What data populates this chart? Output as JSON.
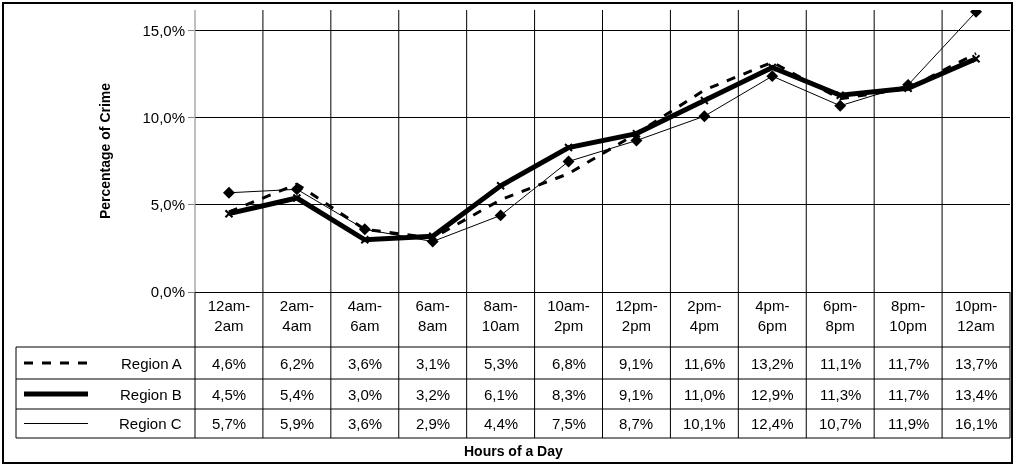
{
  "chart_data": {
    "type": "line",
    "annotations": [
      "Hours of a Day"
    ],
    "ylabel": "Percentage of Crime",
    "categories": [
      "12am-2am",
      "2am-4am",
      "4am-6am",
      "6am-8am",
      "8am-10am",
      "10am-2pm",
      "12pm-2pm",
      "2pm-4pm",
      "4pm-6pm",
      "6pm-8pm",
      "8pm-10pm",
      "10pm-12am"
    ],
    "series": [
      {
        "name": "Region A",
        "color": "#000000",
        "line_style": "dashed",
        "marker": "none",
        "values": [
          4.6,
          6.2,
          3.6,
          3.1,
          5.3,
          6.8,
          9.1,
          11.6,
          13.2,
          11.1,
          11.7,
          13.7
        ],
        "value_labels": [
          "4,6%",
          "6,2%",
          "3,6%",
          "3,1%",
          "5,3%",
          "6,8%",
          "9,1%",
          "11,6%",
          "13,2%",
          "11,1%",
          "11,7%",
          "13,7%"
        ]
      },
      {
        "name": "Region B",
        "color": "#000000",
        "line_style": "solid",
        "marker": "cross",
        "values": [
          4.5,
          5.4,
          3.0,
          3.2,
          6.1,
          8.3,
          9.1,
          11.0,
          12.9,
          11.3,
          11.7,
          13.4
        ],
        "value_labels": [
          "4,5%",
          "5,4%",
          "3,0%",
          "3,2%",
          "6,1%",
          "8,3%",
          "9,1%",
          "11,0%",
          "12,9%",
          "11,3%",
          "11,7%",
          "13,4%"
        ]
      },
      {
        "name": "Region C",
        "color": "#000000",
        "line_style": "solid",
        "marker": "diamond",
        "values": [
          5.7,
          5.9,
          3.6,
          2.9,
          4.4,
          7.5,
          8.7,
          10.1,
          12.4,
          10.7,
          11.9,
          16.1
        ],
        "value_labels": [
          "5,7%",
          "5,9%",
          "3,6%",
          "2,9%",
          "4,4%",
          "7,5%",
          "8,7%",
          "10,1%",
          "12,4%",
          "10,7%",
          "11,9%",
          "16,1%"
        ]
      }
    ],
    "ylim": [
      0,
      16.2
    ],
    "yticks": [
      {
        "value": 0,
        "label": "0,0%"
      },
      {
        "value": 5,
        "label": "5,0%"
      },
      {
        "value": 10,
        "label": "10,0%"
      },
      {
        "value": 15,
        "label": "15,0%"
      }
    ],
    "grid": true,
    "legend": "left"
  }
}
